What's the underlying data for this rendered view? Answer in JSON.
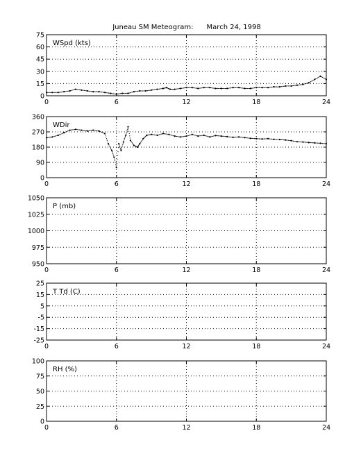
{
  "chart_data": {
    "type": "scatter",
    "title": "Juneau SM Meteogram:      March 24, 1998",
    "panels": [
      {
        "label": "WSpd (kts)",
        "ylim": [
          0,
          75
        ],
        "yticks": [
          0,
          15,
          30,
          45,
          60,
          75
        ],
        "xlim": [
          0,
          24
        ],
        "xticks": [
          0,
          6,
          12,
          18,
          24
        ],
        "grid": true,
        "series": [
          {
            "points": [
              [
                0,
                4
              ],
              [
                0.5,
                4
              ],
              [
                1,
                4
              ],
              [
                1.5,
                5
              ],
              [
                2,
                6
              ],
              [
                2.5,
                8
              ],
              [
                3,
                7
              ],
              [
                3.5,
                6
              ],
              [
                4,
                5
              ],
              [
                4.5,
                5
              ],
              [
                5,
                4
              ],
              [
                5.5,
                3
              ],
              [
                6,
                2
              ],
              [
                6.5,
                3
              ],
              [
                7,
                3
              ],
              [
                7.5,
                5
              ],
              [
                8,
                6
              ],
              [
                8.5,
                6
              ],
              [
                9,
                7
              ],
              [
                9.5,
                8
              ],
              [
                10,
                9
              ],
              [
                10.3,
                10
              ],
              [
                10.6,
                8
              ],
              [
                11,
                8
              ],
              [
                11.5,
                9
              ],
              [
                12,
                10
              ],
              [
                12.5,
                10
              ],
              [
                13,
                9
              ],
              [
                13.5,
                10
              ],
              [
                14,
                10
              ],
              [
                14.5,
                9
              ],
              [
                15,
                9
              ],
              [
                15.5,
                9
              ],
              [
                16,
                10
              ],
              [
                16.5,
                10
              ],
              [
                17,
                9
              ],
              [
                17.5,
                9
              ],
              [
                18,
                10
              ],
              [
                18.5,
                10
              ],
              [
                19,
                10
              ],
              [
                19.5,
                11
              ],
              [
                20,
                11
              ],
              [
                20.5,
                12
              ],
              [
                21,
                12
              ],
              [
                21.5,
                13
              ],
              [
                22,
                14
              ],
              [
                22.5,
                16
              ],
              [
                23,
                20
              ],
              [
                23.5,
                24
              ],
              [
                24,
                20
              ]
            ]
          }
        ]
      },
      {
        "label": "WDir",
        "ylim": [
          0,
          360
        ],
        "yticks": [
          0,
          90,
          180,
          270,
          360
        ],
        "xlim": [
          0,
          24
        ],
        "xticks": [
          0,
          6,
          12,
          18,
          24
        ],
        "grid": true,
        "series": [
          {
            "points": [
              [
                0,
                235
              ],
              [
                0.5,
                240
              ],
              [
                1,
                250
              ],
              [
                1.5,
                265
              ],
              [
                2,
                280
              ],
              [
                2.5,
                285
              ],
              [
                3,
                280
              ],
              [
                3.5,
                275
              ],
              [
                4,
                280
              ],
              [
                4.5,
                275
              ],
              [
                5,
                260
              ],
              [
                5.3,
                200
              ],
              [
                5.6,
                160
              ],
              [
                5.8,
                120
              ],
              [
                6,
                60
              ],
              [
                6.2,
                200
              ],
              [
                6.4,
                160
              ],
              [
                6.6,
                210
              ],
              [
                6.8,
                250
              ],
              [
                7,
                300
              ],
              [
                7.2,
                220
              ],
              [
                7.5,
                190
              ],
              [
                7.8,
                180
              ],
              [
                8,
                200
              ],
              [
                8.3,
                230
              ],
              [
                8.6,
                250
              ],
              [
                9,
                255
              ],
              [
                9.5,
                250
              ],
              [
                10,
                260
              ],
              [
                10.5,
                255
              ],
              [
                11,
                245
              ],
              [
                11.5,
                240
              ],
              [
                12,
                245
              ],
              [
                12.5,
                255
              ],
              [
                13,
                245
              ],
              [
                13.5,
                250
              ],
              [
                14,
                240
              ],
              [
                14.5,
                248
              ],
              [
                15,
                245
              ],
              [
                15.5,
                242
              ],
              [
                16,
                238
              ],
              [
                16.5,
                240
              ],
              [
                17,
                236
              ],
              [
                17.5,
                232
              ],
              [
                18,
                230
              ],
              [
                18.5,
                228
              ],
              [
                19,
                230
              ],
              [
                19.5,
                226
              ],
              [
                20,
                225
              ],
              [
                20.5,
                222
              ],
              [
                21,
                218
              ],
              [
                21.5,
                212
              ],
              [
                22,
                210
              ],
              [
                22.5,
                207
              ],
              [
                23,
                205
              ],
              [
                23.5,
                203
              ],
              [
                24,
                200
              ]
            ]
          }
        ]
      },
      {
        "label": "P (mb)",
        "ylim": [
          950,
          1050
        ],
        "yticks": [
          950,
          975,
          1000,
          1025,
          1050
        ],
        "xlim": [
          0,
          24
        ],
        "xticks": [
          0,
          6,
          12,
          18,
          24
        ],
        "grid": true,
        "series": []
      },
      {
        "label": "T Td (C)",
        "ylim": [
          -25,
          25
        ],
        "yticks": [
          -25,
          -15,
          -5,
          5,
          15,
          25
        ],
        "xlim": [
          0,
          24
        ],
        "xticks": [
          0,
          6,
          12,
          18,
          24
        ],
        "grid": true,
        "series": []
      },
      {
        "label": "RH (%)",
        "ylim": [
          0,
          100
        ],
        "yticks": [
          0,
          25,
          50,
          75,
          100
        ],
        "xlim": [
          0,
          24
        ],
        "xticks": [
          0,
          6,
          12,
          18,
          24
        ],
        "grid": true,
        "series": []
      }
    ]
  },
  "colors": {
    "axes": "#000000",
    "grid": "#000000",
    "marker": "#000000",
    "background": "#ffffff"
  }
}
